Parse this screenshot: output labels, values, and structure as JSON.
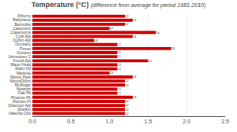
{
  "chart_data": {
    "type": "bar",
    "title": "Temperature (°C)",
    "subtitle": "(difference from average for period 1981-2010)",
    "orientation": "horizontal",
    "categories": [
      "Alhenry",
      "Ballyhaise",
      "Belmullet",
      "Casement",
      "Claremorris",
      "Cork Apt",
      "Dublin Apt",
      "Dunsany",
      "Finner",
      "Gurteen",
      "Johnstown C",
      "Knock Apt",
      "Mace Head",
      "Malin Hd",
      "Markree",
      "Moore Park",
      "MountDillon",
      "Mullingar",
      "Newport",
      "Oak Pk",
      "Phoenix Pk",
      "Roches Pt",
      "Shannon Apt",
      "Sherkin",
      "Valentia Obs"
    ],
    "values": [
      1.2,
      1.3,
      1.2,
      1.0,
      1.6,
      1.3,
      0.8,
      1.1,
      1.8,
      1.1,
      1.1,
      1.5,
      1.1,
      1.1,
      1.0,
      1.3,
      1.2,
      1.2,
      1.1,
      1.1,
      1.3,
      1.2,
      1.2,
      1.2,
      1.2
    ],
    "value_labels": [
      "1.2",
      "1.3",
      "1.2",
      "1.0",
      "1.6",
      "1.3",
      "0.8",
      "1.1",
      "1.8",
      "1.1",
      "1.1",
      "1.5",
      "1.1",
      "1.1",
      "1.0",
      "1.3",
      "1.2",
      "1.2",
      "1.1",
      "1.1",
      "1.3",
      "1.2",
      "1.2",
      "1.2",
      "1.2"
    ],
    "data_labels": true,
    "color": "#cc0000",
    "xlim": [
      0,
      2.5
    ],
    "xticks": [
      {
        "value": 0,
        "label": "0.0"
      },
      0.5,
      {
        "value": 1,
        "label": "1.0"
      },
      1.5,
      {
        "value": 2,
        "label": "2.0"
      },
      2.5
    ],
    "grid": true
  }
}
